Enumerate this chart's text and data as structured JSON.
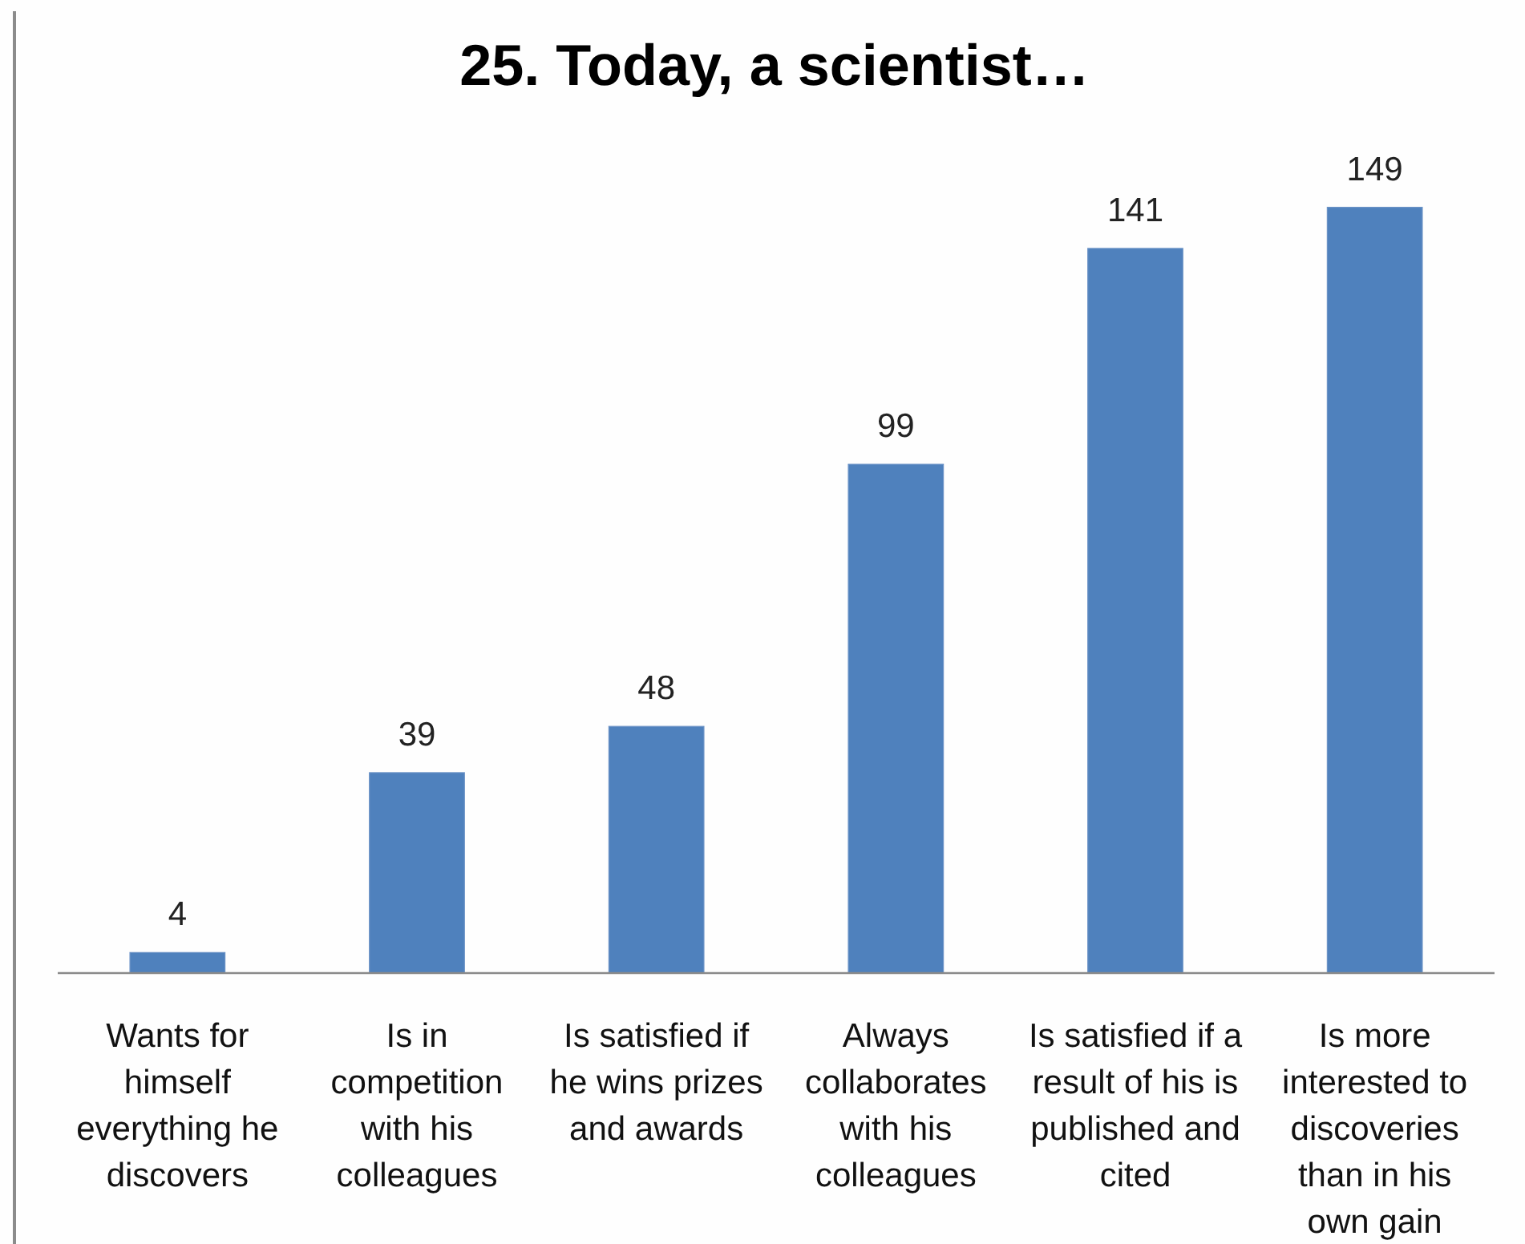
{
  "chart_data": {
    "type": "bar",
    "title": "25. Today, a scientist…",
    "categories": [
      "Wants for himself everything he discovers",
      "Is in competition with his colleagues",
      "Is satisfied if he wins prizes and awards",
      "Always collaborates with his colleagues",
      "Is satisfied if a result of his is published and cited",
      "Is more interested to discoveries than in his own gain"
    ],
    "values": [
      4,
      39,
      48,
      99,
      141,
      149
    ],
    "color": "#4f81bd",
    "data_labels": true,
    "tick_labels": "x"
  }
}
